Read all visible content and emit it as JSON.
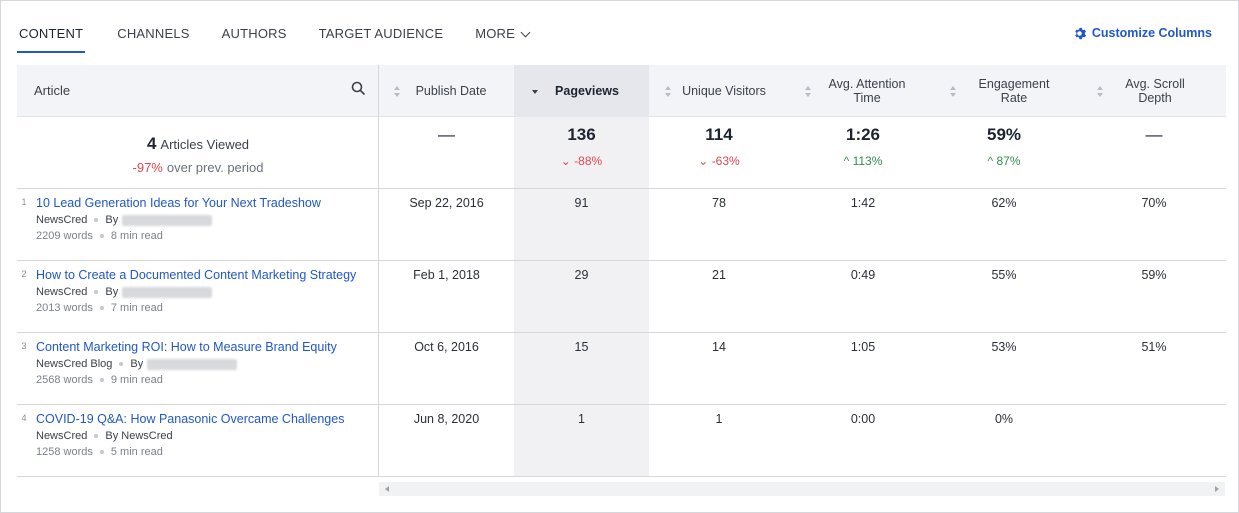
{
  "tabs": [
    {
      "label": "CONTENT",
      "active": true
    },
    {
      "label": "CHANNELS",
      "active": false
    },
    {
      "label": "AUTHORS",
      "active": false
    },
    {
      "label": "TARGET AUDIENCE",
      "active": false
    },
    {
      "label": "MORE",
      "active": false
    }
  ],
  "customize_label": "Customize Columns",
  "columns": {
    "article": "Article",
    "publish_date": "Publish Date",
    "pageviews": "Pageviews",
    "unique_visitors": "Unique Visitors",
    "avg_attention_time": "Avg. Attention Time",
    "engagement_rate": "Engagement Rate",
    "avg_scroll_depth": "Avg. Scroll Depth"
  },
  "summary": {
    "articles_count": "4",
    "articles_label": "Articles Viewed",
    "change": "-97%",
    "change_label": "over prev. period",
    "publish_date": "—",
    "pageviews": "136",
    "pageviews_change": "-88%",
    "unique_visitors": "114",
    "unique_visitors_change": "-63%",
    "avg_attention_time": "1:26",
    "avg_attention_time_change": "113%",
    "engagement_rate": "59%",
    "engagement_rate_change": "87%",
    "avg_scroll_depth": "—"
  },
  "rows": [
    {
      "num": "1",
      "title": "10 Lead Generation Ideas for Your Next Tradeshow",
      "source": "NewsCred",
      "by": "By",
      "author": "",
      "words": "2209 words",
      "read": "8 min read",
      "publish_date": "Sep 22, 2016",
      "pageviews": "91",
      "unique_visitors": "78",
      "avg_attention_time": "1:42",
      "engagement_rate": "62%",
      "avg_scroll_depth": "70%"
    },
    {
      "num": "2",
      "title": "How to Create a Documented Content Marketing Strategy",
      "source": "NewsCred",
      "by": "By",
      "author": "",
      "words": "2013 words",
      "read": "7 min read",
      "publish_date": "Feb 1, 2018",
      "pageviews": "29",
      "unique_visitors": "21",
      "avg_attention_time": "0:49",
      "engagement_rate": "55%",
      "avg_scroll_depth": "59%"
    },
    {
      "num": "3",
      "title": "Content Marketing ROI: How to Measure Brand Equity",
      "source": "NewsCred Blog",
      "by": "By",
      "author": "",
      "words": "2568 words",
      "read": "9 min read",
      "publish_date": "Oct 6, 2016",
      "pageviews": "15",
      "unique_visitors": "14",
      "avg_attention_time": "1:05",
      "engagement_rate": "53%",
      "avg_scroll_depth": "51%"
    },
    {
      "num": "4",
      "title": "COVID-19 Q&A: How Panasonic Overcame Challenges",
      "source": "NewsCred",
      "by": "By NewsCred",
      "author": "",
      "words": "1258 words",
      "read": "5 min read",
      "publish_date": "Jun 8, 2020",
      "pageviews": "1",
      "unique_visitors": "1",
      "avg_attention_time": "0:00",
      "engagement_rate": "0%",
      "avg_scroll_depth": ""
    }
  ]
}
